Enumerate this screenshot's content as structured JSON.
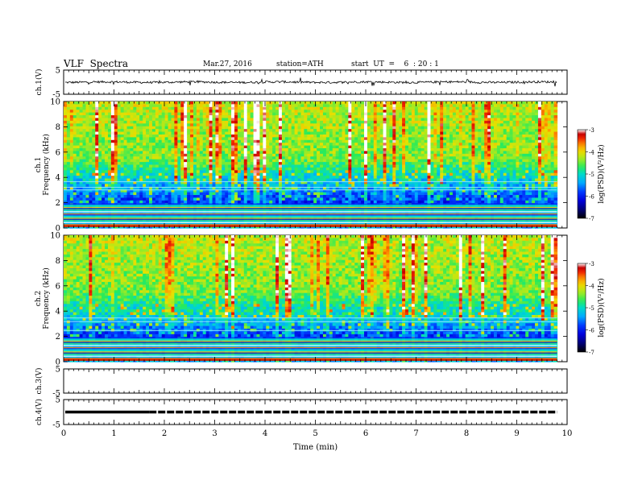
{
  "header": {
    "title": "VLF  Spectra",
    "date": "Mar.27, 2016",
    "station": "station=ATH",
    "start": "start  UT  =    6  : 20 : 1"
  },
  "chart_data": [
    {
      "type": "line",
      "panel": "ch1-waveform",
      "ylabel": "ch.1(V)",
      "ylim": [
        -5,
        5
      ],
      "yticks": [
        "5",
        "-5"
      ],
      "baseline": 0,
      "amplitude": "small, approx ±0.5 V with spikes",
      "color": "#000000"
    },
    {
      "type": "heatmap",
      "panel": "ch1-spectrogram",
      "ylabel": [
        "ch.1",
        "Frequency  (kHz)"
      ],
      "ylim": [
        0,
        10
      ],
      "yticks": [
        "0",
        "2",
        "4",
        "6",
        "8",
        "10"
      ],
      "colorbar": {
        "label": "log(PSD)(V²/Hz)",
        "ticks": [
          "-3",
          "-4",
          "-5",
          "-6",
          "-7"
        ],
        "range": [
          -7,
          -3
        ]
      }
    },
    {
      "type": "heatmap",
      "panel": "ch2-spectrogram",
      "ylabel": [
        "ch.2",
        "Frequency  (kHz)"
      ],
      "ylim": [
        0,
        10
      ],
      "yticks": [
        "0",
        "2",
        "4",
        "6",
        "8",
        "10"
      ],
      "colorbar": {
        "label": "log(PSD)(V²/Hz)",
        "ticks": [
          "-3",
          "-4",
          "-5",
          "-6",
          "-7"
        ],
        "range": [
          -7,
          -3
        ]
      }
    },
    {
      "type": "line",
      "panel": "ch3-waveform",
      "ylabel": "ch.3(V)",
      "ylim": [
        -5,
        5
      ],
      "yticks": [
        "5",
        "-5"
      ],
      "note": "no signal"
    },
    {
      "type": "line",
      "panel": "ch4-waveform",
      "ylabel": "ch.4(V)",
      "ylim": [
        -5,
        5
      ],
      "yticks": [
        "5",
        "-5"
      ],
      "level": 0,
      "style": "dashed thick line, solid from 0 to 1.7 min"
    }
  ],
  "xaxis": {
    "label": "Time  (min)",
    "range": [
      0,
      10
    ],
    "ticks": [
      "0",
      "1",
      "2",
      "3",
      "4",
      "5",
      "6",
      "7",
      "8",
      "9",
      "10"
    ],
    "data_end": 9.8
  },
  "colors": {
    "scale": [
      "#000000",
      "#0000cc",
      "#0044ff",
      "#00aaff",
      "#00ddcc",
      "#33ee66",
      "#99ee33",
      "#dddd00",
      "#ffaa00",
      "#ff3300",
      "#cc0000",
      "#ffffff"
    ]
  }
}
